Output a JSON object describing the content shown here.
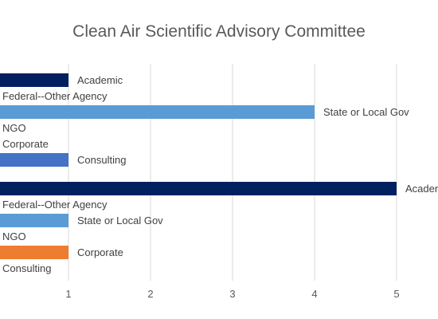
{
  "chart_data": {
    "type": "bar",
    "orientation": "horizontal",
    "title": "Clean Air Scientific Advisory Committee",
    "xlabel": "",
    "ylabel": "",
    "xlim": [
      0,
      5
    ],
    "x_ticks": [
      "1",
      "2",
      "3",
      "4",
      "5"
    ],
    "grid": true,
    "legend": "none",
    "groups": [
      {
        "bars": [
          {
            "category": "Academic",
            "value": 1,
            "color": "#002060"
          },
          {
            "category": "Federal--Other Agency",
            "value": 0,
            "color": "#1F4E79"
          },
          {
            "category": "State or Local Gov",
            "value": 4,
            "color": "#5B9BD5"
          },
          {
            "category": "NGO",
            "value": 0,
            "color": "#9DC3E6"
          },
          {
            "category": "Corporate",
            "value": 0,
            "color": "#ED7D31"
          },
          {
            "category": "Consulting",
            "value": 1,
            "color": "#4472C4"
          }
        ]
      },
      {
        "bars": [
          {
            "category": "Academic",
            "value": 5,
            "color": "#002060"
          },
          {
            "category": "Federal--Other Agency",
            "value": 0,
            "color": "#1F4E79"
          },
          {
            "category": "State or Local Gov",
            "value": 1,
            "color": "#5B9BD5"
          },
          {
            "category": "NGO",
            "value": 0,
            "color": "#9DC3E6"
          },
          {
            "category": "Corporate",
            "value": 1,
            "color": "#ED7D31"
          },
          {
            "category": "Consulting",
            "value": 0,
            "color": "#4472C4"
          }
        ]
      }
    ]
  }
}
